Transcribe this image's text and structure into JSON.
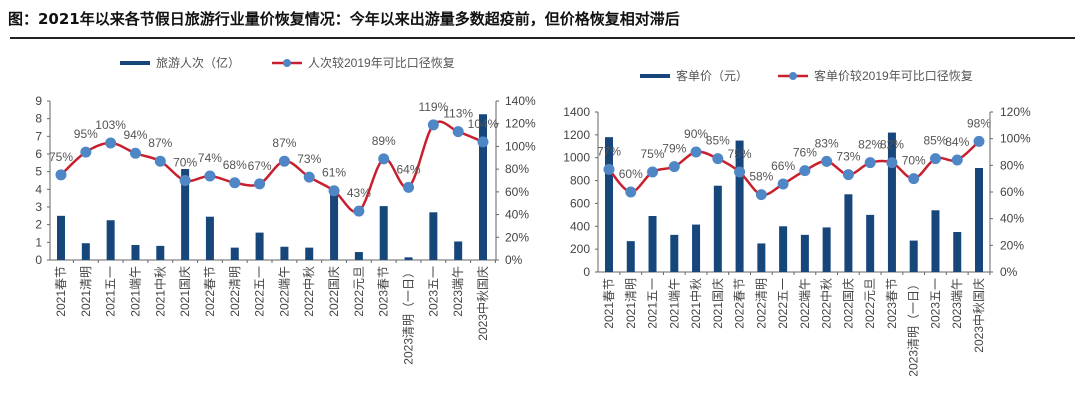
{
  "title": "图：2021年以来各节假日旅游行业量价恢复情况：今年以来出游量多数超疫前，但价格恢复相对滞后",
  "colors": {
    "bar": "#17467a",
    "line": "#c8202f",
    "marker": "#4f86c6",
    "text": "#444444"
  },
  "chart_data": [
    {
      "type": "bar+line",
      "legend": [
        "旅游人次（亿）",
        "人次较2019年可比口径恢复"
      ],
      "legend_position": "top",
      "categories": [
        "2021春节",
        "2021清明",
        "2021五一",
        "2021端午",
        "2021中秋",
        "2021国庆",
        "2022春节",
        "2022清明",
        "2022五一",
        "2022端午",
        "2022中秋",
        "2022国庆",
        "2022元旦",
        "2023春节",
        "2023清明（一日）",
        "2023五一",
        "2023端午",
        "2023中秋国庆"
      ],
      "series": [
        {
          "name": "旅游人次（亿）",
          "type": "bar",
          "axis": "left",
          "values": [
            2.5,
            0.95,
            2.25,
            0.85,
            0.8,
            5.15,
            2.45,
            0.7,
            1.55,
            0.75,
            0.7,
            4.0,
            0.45,
            3.05,
            0.15,
            2.7,
            1.05,
            8.25
          ]
        },
        {
          "name": "人次较2019年可比口径恢复",
          "type": "line",
          "axis": "right",
          "values": [
            75,
            95,
            103,
            94,
            87,
            70,
            74,
            68,
            67,
            87,
            73,
            61,
            43,
            89,
            64,
            119,
            113,
            104
          ],
          "labels": [
            "75%",
            "95%",
            "103%",
            "94%",
            "87%",
            "70%",
            "74%",
            "68%",
            "67%",
            "87%",
            "73%",
            "61%",
            "43%",
            "89%",
            "64%",
            "119%",
            "113%",
            "104%"
          ]
        }
      ],
      "ylim_left": [
        0,
        9
      ],
      "yticks_left": [
        "0",
        "1",
        "2",
        "3",
        "4",
        "5",
        "6",
        "7",
        "8",
        "9"
      ],
      "ylim_right": [
        0,
        140
      ],
      "yticks_right": [
        "0%",
        "20%",
        "40%",
        "60%",
        "80%",
        "100%",
        "120%",
        "140%"
      ]
    },
    {
      "type": "bar+line",
      "legend": [
        "客单价（元）",
        "客单价较2019年可比口径恢复"
      ],
      "legend_position": "top",
      "categories": [
        "2021春节",
        "2021清明",
        "2021五一",
        "2021端午",
        "2021中秋",
        "2021国庆",
        "2022春节",
        "2022清明",
        "2022五一",
        "2022端午",
        "2022中秋",
        "2022国庆",
        "2022元旦",
        "2023春节",
        "2023清明（一日）",
        "2023五一",
        "2023端午",
        "2023中秋国庆"
      ],
      "series": [
        {
          "name": "客单价（元）",
          "type": "bar",
          "axis": "left",
          "values": [
            1180,
            270,
            490,
            325,
            415,
            755,
            1150,
            250,
            400,
            325,
            390,
            680,
            500,
            1220,
            275,
            540,
            350,
            910
          ]
        },
        {
          "name": "客单价较2019年可比口径恢复",
          "type": "line",
          "axis": "right",
          "values": [
            77,
            60,
            75,
            79,
            90,
            85,
            75,
            58,
            66,
            76,
            83,
            73,
            82,
            82,
            70,
            85,
            84,
            98
          ],
          "labels": [
            "77%",
            "60%",
            "75%",
            "79%",
            "90%",
            "85%",
            "75%",
            "58%",
            "66%",
            "76%",
            "83%",
            "73%",
            "82%",
            "82%",
            "70%",
            "85%",
            "84%",
            "98%"
          ]
        }
      ],
      "ylim_left": [
        0,
        1400
      ],
      "yticks_left": [
        "0",
        "200",
        "400",
        "600",
        "800",
        "1000",
        "1200",
        "1400"
      ],
      "ylim_right": [
        0,
        120
      ],
      "yticks_right": [
        "0%",
        "20%",
        "40%",
        "60%",
        "80%",
        "100%",
        "120%"
      ]
    }
  ]
}
